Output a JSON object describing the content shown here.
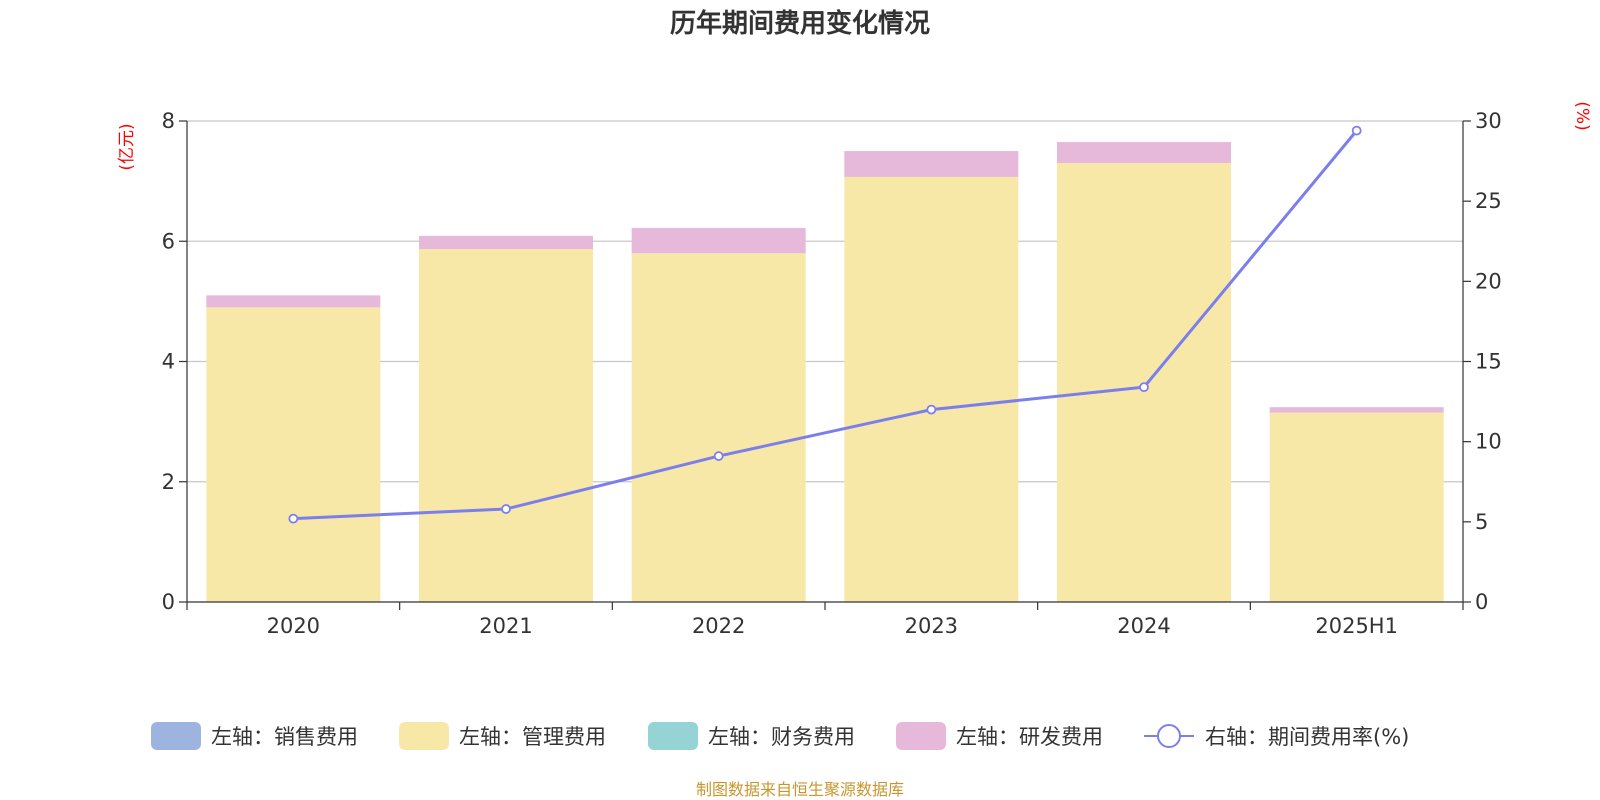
{
  "chart_data": {
    "type": "bar",
    "title": "历年期间费用变化情况",
    "categories": [
      "2020",
      "2021",
      "2022",
      "2023",
      "2024",
      "2025H1"
    ],
    "left_axis": {
      "unit_label": "(亿元)",
      "ylim": [
        0,
        8
      ],
      "ticks": [
        "0",
        "2",
        "4",
        "6",
        "8"
      ]
    },
    "right_axis": {
      "unit_label": "(%)",
      "ylim": [
        0,
        30
      ],
      "ticks": [
        "0",
        "5",
        "10",
        "15",
        "20",
        "25",
        "30"
      ]
    },
    "stacked": true,
    "series": [
      {
        "name": "左轴：销售费用",
        "axis": "left",
        "type": "bar",
        "color": "#9db4e0",
        "values": [
          0,
          0,
          0,
          0,
          0,
          0
        ]
      },
      {
        "name": "左轴：管理费用",
        "axis": "left",
        "type": "bar",
        "color": "#f8e8a8",
        "values": [
          4.9,
          5.87,
          5.8,
          7.07,
          7.3,
          3.15
        ]
      },
      {
        "name": "左轴：财务费用",
        "axis": "left",
        "type": "bar",
        "color": "#95d3d4",
        "values": [
          0,
          0,
          0,
          0,
          0,
          0
        ]
      },
      {
        "name": "左轴：研发费用",
        "axis": "left",
        "type": "bar",
        "color": "#e6b9da",
        "values": [
          0.2,
          0.22,
          0.42,
          0.43,
          0.35,
          0.09
        ]
      },
      {
        "name": "右轴：期间费用率(%)",
        "axis": "right",
        "type": "line",
        "color": "#7b7fec",
        "values": [
          5.2,
          5.8,
          9.1,
          12.0,
          13.4,
          29.4
        ]
      }
    ],
    "grid": true,
    "legend_position": "bottom"
  },
  "source_note": "制图数据来自恒生聚源数据库"
}
